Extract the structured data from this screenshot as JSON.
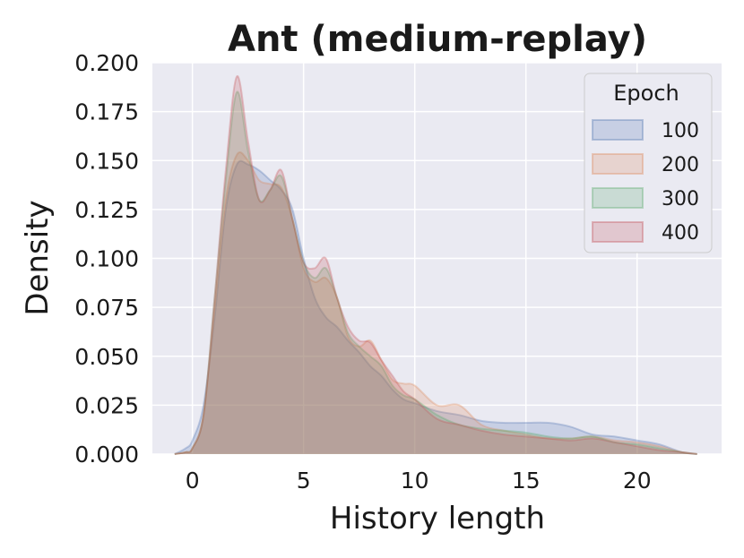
{
  "chart_data": {
    "type": "area",
    "title": "Ant (medium-replay)",
    "xlabel": "History length",
    "ylabel": "Density",
    "xlim": [
      -1.8,
      23.8
    ],
    "ylim": [
      0,
      0.2
    ],
    "x_ticks": [
      0,
      5,
      10,
      15,
      20
    ],
    "x_tick_labels": [
      "0",
      "5",
      "10",
      "15",
      "20"
    ],
    "y_ticks": [
      0,
      0.025,
      0.05,
      0.075,
      0.1,
      0.125,
      0.15,
      0.175,
      0.2
    ],
    "y_tick_labels": [
      "0.000",
      "0.025",
      "0.050",
      "0.075",
      "0.100",
      "0.125",
      "0.150",
      "0.175",
      "0.200"
    ],
    "grid": true,
    "legend": {
      "title": "Epoch",
      "placement": "top-right"
    },
    "series": [
      {
        "name": "100",
        "color": "#4c72b0",
        "x": [
          -0.8,
          -0.3,
          0,
          0.5,
          1,
          1.5,
          2,
          2.5,
          3,
          3.5,
          4,
          4.5,
          5,
          5.5,
          6,
          6.5,
          7,
          7.5,
          8,
          8.5,
          9,
          9.5,
          10,
          11,
          12,
          13,
          14,
          15,
          16,
          17,
          18,
          19,
          20,
          21,
          22,
          22.7
        ],
        "y": [
          0,
          0.003,
          0.007,
          0.025,
          0.07,
          0.125,
          0.148,
          0.148,
          0.145,
          0.14,
          0.135,
          0.125,
          0.1,
          0.08,
          0.07,
          0.065,
          0.058,
          0.052,
          0.045,
          0.04,
          0.033,
          0.028,
          0.026,
          0.022,
          0.02,
          0.017,
          0.016,
          0.016,
          0.016,
          0.014,
          0.01,
          0.009,
          0.007,
          0.005,
          0.001,
          0
        ]
      },
      {
        "name": "200",
        "color": "#dd8452",
        "x": [
          -0.8,
          -0.3,
          0,
          0.5,
          1,
          1.5,
          2,
          2.5,
          3,
          3.5,
          4,
          4.5,
          5,
          5.5,
          6,
          6.5,
          7,
          7.5,
          8,
          8.5,
          9,
          9.5,
          10,
          11,
          12,
          13,
          14,
          15,
          16,
          17,
          18,
          19,
          20,
          21,
          22,
          22.7
        ],
        "y": [
          0,
          0.001,
          0.003,
          0.02,
          0.075,
          0.13,
          0.153,
          0.15,
          0.14,
          0.138,
          0.136,
          0.12,
          0.095,
          0.088,
          0.09,
          0.08,
          0.06,
          0.055,
          0.058,
          0.048,
          0.038,
          0.036,
          0.035,
          0.025,
          0.025,
          0.015,
          0.012,
          0.01,
          0.008,
          0.008,
          0.009,
          0.007,
          0.006,
          0.004,
          0.001,
          0
        ]
      },
      {
        "name": "300",
        "color": "#55a868",
        "x": [
          -0.8,
          -0.3,
          0,
          0.5,
          1,
          1.5,
          2,
          2.5,
          3,
          3.5,
          4,
          4.5,
          5,
          5.5,
          6,
          6.5,
          7,
          7.5,
          8,
          8.5,
          9,
          9.5,
          10,
          11,
          12,
          13,
          14,
          15,
          16,
          17,
          18,
          19,
          20,
          21,
          22,
          22.7
        ],
        "y": [
          0,
          0.001,
          0.003,
          0.02,
          0.08,
          0.14,
          0.185,
          0.155,
          0.13,
          0.135,
          0.142,
          0.12,
          0.098,
          0.09,
          0.095,
          0.08,
          0.062,
          0.055,
          0.05,
          0.045,
          0.035,
          0.03,
          0.028,
          0.02,
          0.015,
          0.013,
          0.012,
          0.011,
          0.009,
          0.008,
          0.009,
          0.006,
          0.005,
          0.003,
          0.001,
          0
        ]
      },
      {
        "name": "400",
        "color": "#c44e52",
        "x": [
          -0.8,
          -0.3,
          0,
          0.5,
          1,
          1.5,
          2,
          2.5,
          3,
          3.5,
          4,
          4.5,
          5,
          5.5,
          6,
          6.5,
          7,
          7.5,
          8,
          8.5,
          9,
          9.5,
          10,
          11,
          12,
          13,
          14,
          15,
          16,
          17,
          18,
          19,
          20,
          21,
          22,
          22.7
        ],
        "y": [
          0,
          0.001,
          0.003,
          0.02,
          0.08,
          0.145,
          0.193,
          0.16,
          0.13,
          0.135,
          0.145,
          0.12,
          0.098,
          0.095,
          0.1,
          0.08,
          0.065,
          0.058,
          0.057,
          0.048,
          0.04,
          0.032,
          0.028,
          0.018,
          0.015,
          0.012,
          0.01,
          0.009,
          0.008,
          0.007,
          0.008,
          0.006,
          0.004,
          0.002,
          0.001,
          0
        ]
      }
    ]
  },
  "colors": {
    "plot_background": "#eaeaf2",
    "grid": "#ffffff"
  }
}
